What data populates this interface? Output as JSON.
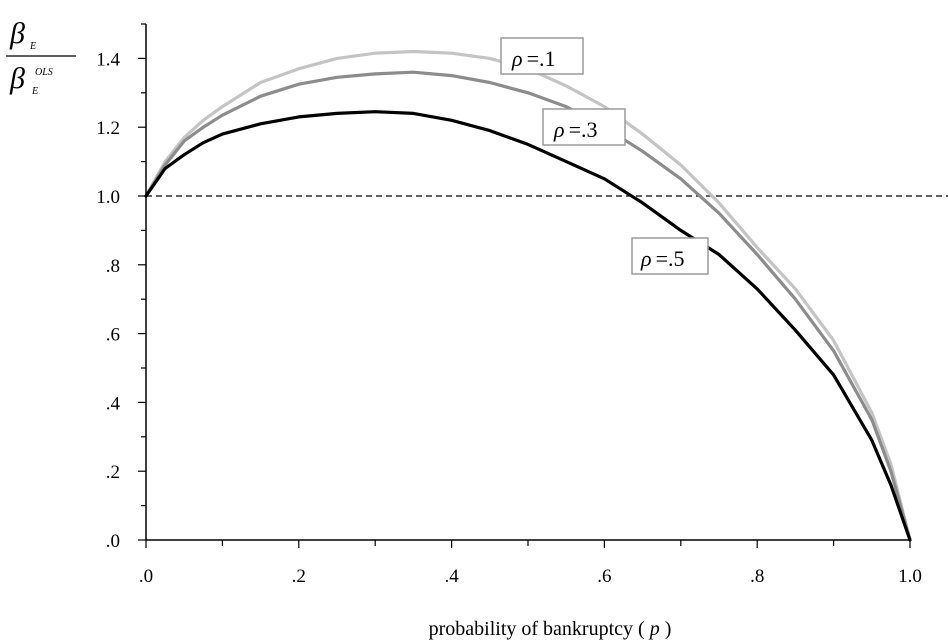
{
  "chart_data": {
    "type": "line",
    "xlabel": "probability of bankruptcy ( p )",
    "xlabel_parts": {
      "text": "probability of bankruptcy (",
      "var": "p",
      "close": ")"
    },
    "ylabel": {
      "numerator": "β",
      "numerator_sub": "E",
      "denominator": "β",
      "denominator_sub": "E",
      "denominator_sup": "OLS"
    },
    "xlim": [
      0,
      1
    ],
    "ylim": [
      0,
      1.5
    ],
    "x_ticks": [
      0,
      0.2,
      0.4,
      0.6,
      0.8,
      1.0
    ],
    "x_tick_labels": [
      ".0",
      ".2",
      ".4",
      ".6",
      ".8",
      "1.0"
    ],
    "y_ticks": [
      0,
      0.2,
      0.4,
      0.6,
      0.8,
      1.0,
      1.2,
      1.4
    ],
    "y_tick_labels": [
      ".0",
      ".2",
      ".4",
      ".6",
      ".8",
      "1.0",
      "1.2",
      "1.4"
    ],
    "reference_line": {
      "y": 1.0,
      "style": "dashed"
    },
    "x": [
      0,
      0.025,
      0.05,
      0.075,
      0.1,
      0.15,
      0.2,
      0.25,
      0.3,
      0.35,
      0.4,
      0.45,
      0.5,
      0.55,
      0.6,
      0.65,
      0.7,
      0.75,
      0.8,
      0.85,
      0.9,
      0.95,
      0.975,
      1.0
    ],
    "series": [
      {
        "label": "ρ = .1",
        "color": "#c4c4c4",
        "values": [
          1.0,
          1.1,
          1.17,
          1.22,
          1.26,
          1.33,
          1.37,
          1.4,
          1.415,
          1.42,
          1.415,
          1.4,
          1.37,
          1.32,
          1.26,
          1.18,
          1.09,
          0.98,
          0.85,
          0.73,
          0.58,
          0.37,
          0.22,
          0.0
        ]
      },
      {
        "label": "ρ = .3",
        "color": "#8c8c8c",
        "values": [
          1.0,
          1.09,
          1.16,
          1.2,
          1.235,
          1.29,
          1.325,
          1.345,
          1.355,
          1.36,
          1.35,
          1.33,
          1.3,
          1.26,
          1.2,
          1.13,
          1.05,
          0.95,
          0.83,
          0.7,
          0.55,
          0.35,
          0.2,
          0.0
        ]
      },
      {
        "label": "ρ = .5",
        "color": "#000000",
        "values": [
          1.0,
          1.08,
          1.12,
          1.155,
          1.18,
          1.21,
          1.23,
          1.24,
          1.245,
          1.24,
          1.22,
          1.19,
          1.15,
          1.1,
          1.05,
          0.98,
          0.9,
          0.83,
          0.73,
          0.61,
          0.48,
          0.29,
          0.16,
          0.0
        ]
      }
    ],
    "legend_labels": [
      {
        "rho": "ρ",
        "value": "=.1"
      },
      {
        "rho": "ρ",
        "value": "=.3"
      },
      {
        "rho": "ρ",
        "value": "=.5"
      }
    ]
  }
}
